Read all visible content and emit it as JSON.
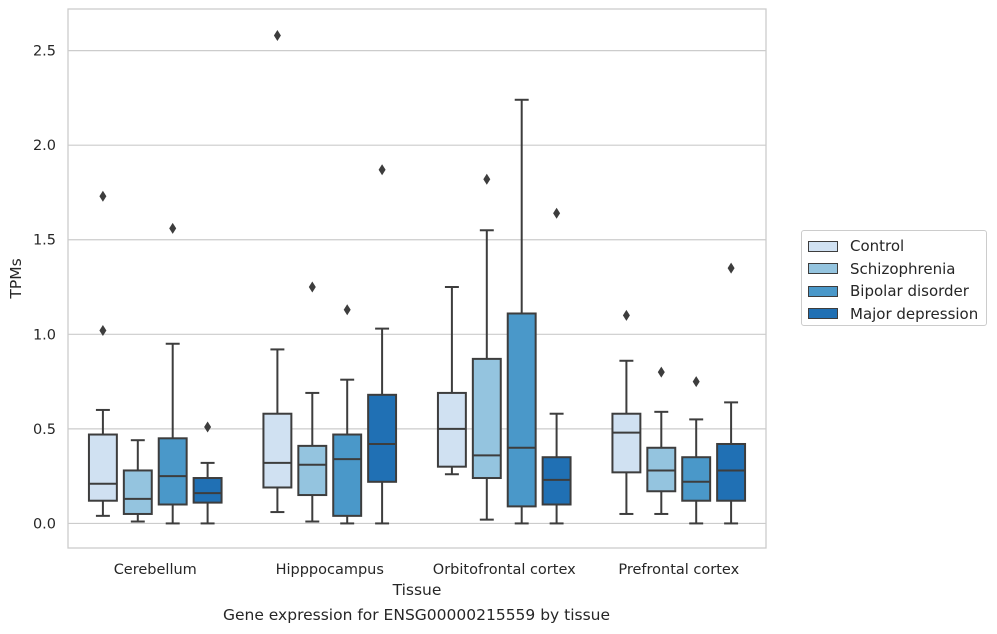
{
  "chart_data": {
    "type": "box",
    "xlabel": "Tissue",
    "ylabel": "TPMs",
    "caption": "Gene expression for ENSG00000215559 by tissue",
    "categories": [
      "Cerebellum",
      "Hipppocampus",
      "Orbitofrontal cortex",
      "Prefrontal cortex"
    ],
    "ylim": [
      -0.13,
      2.72
    ],
    "yticks": [
      0.0,
      0.5,
      1.0,
      1.5,
      2.0,
      2.5
    ],
    "ytick_labels": [
      "0.0",
      "0.5",
      "1.0",
      "1.5",
      "2.0",
      "2.5"
    ],
    "grid": true,
    "legend_position": "right",
    "series": [
      {
        "name": "Control",
        "color": "#d0e1f2",
        "boxes": [
          {
            "whisker_low": 0.04,
            "q1": 0.12,
            "median": 0.21,
            "q3": 0.47,
            "whisker_high": 0.6,
            "outliers": [
              1.02,
              1.73
            ]
          },
          {
            "whisker_low": 0.06,
            "q1": 0.19,
            "median": 0.32,
            "q3": 0.58,
            "whisker_high": 0.92,
            "outliers": [
              2.58
            ]
          },
          {
            "whisker_low": 0.26,
            "q1": 0.3,
            "median": 0.5,
            "q3": 0.69,
            "whisker_high": 1.25,
            "outliers": []
          },
          {
            "whisker_low": 0.05,
            "q1": 0.27,
            "median": 0.48,
            "q3": 0.58,
            "whisker_high": 0.86,
            "outliers": [
              1.1
            ]
          }
        ]
      },
      {
        "name": "Schizophrenia",
        "color": "#94c4df",
        "boxes": [
          {
            "whisker_low": 0.01,
            "q1": 0.05,
            "median": 0.13,
            "q3": 0.28,
            "whisker_high": 0.44,
            "outliers": []
          },
          {
            "whisker_low": 0.01,
            "q1": 0.15,
            "median": 0.31,
            "q3": 0.41,
            "whisker_high": 0.69,
            "outliers": [
              1.25
            ]
          },
          {
            "whisker_low": 0.02,
            "q1": 0.24,
            "median": 0.36,
            "q3": 0.87,
            "whisker_high": 1.55,
            "outliers": [
              1.82
            ]
          },
          {
            "whisker_low": 0.05,
            "q1": 0.17,
            "median": 0.28,
            "q3": 0.4,
            "whisker_high": 0.59,
            "outliers": [
              0.8
            ]
          }
        ]
      },
      {
        "name": "Bipolar disorder",
        "color": "#4a98c9",
        "boxes": [
          {
            "whisker_low": 0.0,
            "q1": 0.1,
            "median": 0.25,
            "q3": 0.45,
            "whisker_high": 0.95,
            "outliers": [
              1.56
            ]
          },
          {
            "whisker_low": 0.0,
            "q1": 0.04,
            "median": 0.34,
            "q3": 0.47,
            "whisker_high": 0.76,
            "outliers": [
              1.13
            ]
          },
          {
            "whisker_low": 0.0,
            "q1": 0.09,
            "median": 0.4,
            "q3": 1.11,
            "whisker_high": 2.24,
            "outliers": []
          },
          {
            "whisker_low": 0.0,
            "q1": 0.12,
            "median": 0.22,
            "q3": 0.35,
            "whisker_high": 0.55,
            "outliers": [
              0.75
            ]
          }
        ]
      },
      {
        "name": "Major depression",
        "color": "#2070b4",
        "boxes": [
          {
            "whisker_low": 0.0,
            "q1": 0.11,
            "median": 0.16,
            "q3": 0.24,
            "whisker_high": 0.32,
            "outliers": [
              0.51
            ]
          },
          {
            "whisker_low": 0.0,
            "q1": 0.22,
            "median": 0.42,
            "q3": 0.68,
            "whisker_high": 1.03,
            "outliers": [
              1.87
            ]
          },
          {
            "whisker_low": 0.0,
            "q1": 0.1,
            "median": 0.23,
            "q3": 0.35,
            "whisker_high": 0.58,
            "outliers": [
              1.64
            ]
          },
          {
            "whisker_low": 0.0,
            "q1": 0.12,
            "median": 0.28,
            "q3": 0.42,
            "whisker_high": 0.64,
            "outliers": [
              1.35
            ]
          }
        ]
      }
    ]
  }
}
